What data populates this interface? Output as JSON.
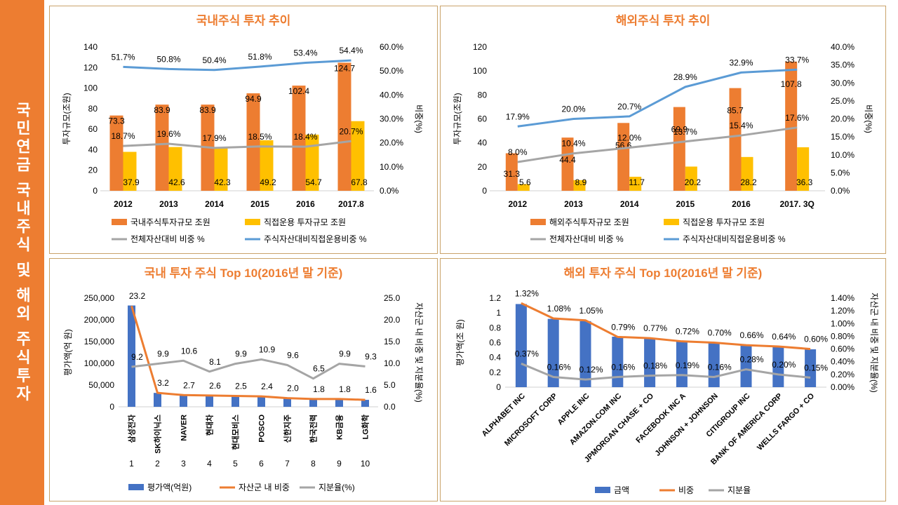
{
  "sidebar": {
    "title": "국민연금 국내주식 및 해외 주식투자"
  },
  "colors": {
    "orange": "#ed7d31",
    "yellow": "#ffc000",
    "gray": "#a5a5a5",
    "blue": "#5b9bd5",
    "dark_blue": "#4472c4",
    "title": "#ed7d31"
  },
  "chart_data": [
    {
      "type": "bar",
      "title": "국내주식 투자 추이",
      "categories": [
        "2012",
        "2013",
        "2014",
        "2015",
        "2016",
        "2017.8"
      ],
      "ylabel": "투자규모(조원)",
      "y2label": "비중(%)",
      "ylim": [
        0,
        140
      ],
      "yticks": [
        "0",
        "20",
        "40",
        "60",
        "80",
        "100",
        "120",
        "140"
      ],
      "y2lim": [
        0,
        60
      ],
      "y2ticks": [
        "0.0%",
        "10.0%",
        "20.0%",
        "30.0%",
        "40.0%",
        "50.0%",
        "60.0%"
      ],
      "series": [
        {
          "name": "국내주식투자규모 조원",
          "kind": "bar",
          "axis": "left",
          "color": "#ed7d31",
          "values": [
            73.3,
            83.9,
            83.9,
            94.9,
            102.4,
            124.7
          ],
          "labels": [
            "73.3",
            "83.9",
            "83.9",
            "94.9",
            "102.4",
            "124.7"
          ]
        },
        {
          "name": "직접운용 투자규모 조원",
          "kind": "bar",
          "axis": "left",
          "color": "#ffc000",
          "values": [
            37.9,
            42.6,
            42.3,
            49.2,
            54.7,
            67.8
          ],
          "labels": [
            "37.9",
            "42.6",
            "42.3",
            "49.2",
            "54.7",
            "67.8"
          ]
        },
        {
          "name": "전체자산대비 비중 %",
          "kind": "line",
          "axis": "right",
          "color": "#a5a5a5",
          "values": [
            18.7,
            19.6,
            17.9,
            18.5,
            18.4,
            20.7
          ],
          "labels": [
            "18.7%",
            "19.6%",
            "17.9%",
            "18.5%",
            "18.4%",
            "20.7%"
          ]
        },
        {
          "name": "주식자산대비직접운용비중 %",
          "kind": "line",
          "axis": "right",
          "color": "#5b9bd5",
          "values": [
            51.7,
            50.8,
            50.4,
            51.8,
            53.4,
            54.4
          ],
          "labels": [
            "51.7%",
            "50.8%",
            "50.4%",
            "51.8%",
            "53.4%",
            "54.4%"
          ]
        }
      ]
    },
    {
      "type": "bar",
      "title": "해외주식 투자 추이",
      "categories": [
        "2012",
        "2013",
        "2014",
        "2015",
        "2016",
        "2017. 3Q"
      ],
      "ylabel": "투자규모(조원)",
      "y2label": "비중(%)",
      "ylim": [
        0,
        120
      ],
      "yticks": [
        "0",
        "20",
        "40",
        "60",
        "80",
        "100",
        "120"
      ],
      "y2lim": [
        0,
        40
      ],
      "y2ticks": [
        "0.0%",
        "5.0%",
        "10.0%",
        "15.0%",
        "20.0%",
        "25.0%",
        "30.0%",
        "35.0%",
        "40.0%"
      ],
      "series": [
        {
          "name": "해외주식투자규모 조원",
          "kind": "bar",
          "axis": "left",
          "color": "#ed7d31",
          "values": [
            31.3,
            44.4,
            56.6,
            69.9,
            85.7,
            107.8
          ],
          "labels": [
            "31.3",
            "44.4",
            "56.6",
            "69.9",
            "85.7",
            "107.8"
          ]
        },
        {
          "name": "직접운용 투자규모 조원",
          "kind": "bar",
          "axis": "left",
          "color": "#ffc000",
          "values": [
            5.6,
            8.9,
            11.7,
            20.2,
            28.2,
            36.3
          ],
          "labels": [
            "5.6",
            "8.9",
            "11.7",
            "20.2",
            "28.2",
            "36.3"
          ]
        },
        {
          "name": "전체자산대비 비중 %",
          "kind": "line",
          "axis": "right",
          "color": "#a5a5a5",
          "values": [
            8.0,
            10.4,
            12.0,
            13.7,
            15.4,
            17.6
          ],
          "labels": [
            "8.0%",
            "10.4%",
            "12.0%",
            "13.7%",
            "15.4%",
            "17.6%"
          ]
        },
        {
          "name": "주식자산대비직접운용비중 %",
          "kind": "line",
          "axis": "right",
          "color": "#5b9bd5",
          "values": [
            17.9,
            20.0,
            20.7,
            28.9,
            32.9,
            33.7
          ],
          "labels": [
            "17.9%",
            "20.0%",
            "20.7%",
            "28.9%",
            "32.9%",
            "33.7%"
          ]
        }
      ]
    },
    {
      "type": "bar",
      "title": "국내 투자 주식 Top 10(2016년 말 기준)",
      "categories": [
        "삼성전자",
        "SK하이닉스",
        "NAVER",
        "현대차",
        "현대모비스",
        "POSCO",
        "신한지주",
        "한국전력",
        "KB금융",
        "LG화학"
      ],
      "ranks": [
        "1",
        "2",
        "3",
        "4",
        "5",
        "6",
        "7",
        "8",
        "9",
        "10"
      ],
      "ylabel": "평가액(억 원)",
      "y2label": "자산군 내 비중 및 지분율(%)",
      "ylim": [
        0,
        250000
      ],
      "yticks": [
        "0",
        "50,000",
        "100,000",
        "150,000",
        "200,000",
        "250,000"
      ],
      "y2lim": [
        0,
        25
      ],
      "y2ticks": [
        "0.0",
        "5.0",
        "10.0",
        "15.0",
        "20.0",
        "25.0"
      ],
      "series": [
        {
          "name": "평가액(억원)",
          "kind": "bar",
          "axis": "left",
          "color": "#4472c4",
          "values": [
            233000,
            32000,
            27000,
            26000,
            25000,
            24000,
            20000,
            18000,
            18000,
            16000
          ]
        },
        {
          "name": "자산군 내 비중",
          "kind": "line",
          "axis": "right",
          "color": "#ed7d31",
          "values": [
            23.2,
            3.2,
            2.7,
            2.6,
            2.5,
            2.4,
            2.0,
            1.8,
            1.8,
            1.6
          ],
          "labels": [
            "23.2",
            "3.2",
            "2.7",
            "2.6",
            "2.5",
            "2.4",
            "2.0",
            "1.8",
            "1.8",
            "1.6"
          ]
        },
        {
          "name": "지분율(%)",
          "kind": "line",
          "axis": "right",
          "color": "#a5a5a5",
          "values": [
            9.2,
            9.9,
            10.6,
            8.1,
            9.9,
            10.9,
            9.6,
            6.5,
            9.9,
            9.3
          ],
          "labels": [
            "9.2",
            "9.9",
            "10.6",
            "8.1",
            "9.9",
            "10.9",
            "9.6",
            "6.5",
            "9.9",
            "9.3"
          ]
        }
      ]
    },
    {
      "type": "bar",
      "title": "해외 투자 주식 Top 10(2016년 말 기준)",
      "categories": [
        "ALPHABET INC",
        "MICROSOFT CORP",
        "APPLE INC",
        "AMAZON.COM INC",
        "JPMORGAN CHASE + CO",
        "FACEBOOK INC A",
        "JOHNSON + JOHNSON",
        "CITIGROUP INC",
        "BANK OF AMERICA CORP",
        "WELLS FARGO + CO"
      ],
      "ylabel": "평가액(조 원)",
      "y2label": "자산군 내 비중 및 지분율(%)",
      "ylim": [
        0,
        1.2
      ],
      "yticks": [
        "0",
        "0.2",
        "0.4",
        "0.6",
        "0.8",
        "1",
        "1.2"
      ],
      "y2lim": [
        0,
        1.4
      ],
      "y2ticks": [
        "0.00%",
        "0.20%",
        "0.40%",
        "0.60%",
        "0.80%",
        "1.00%",
        "1.20%",
        "1.40%"
      ],
      "series": [
        {
          "name": "금액",
          "kind": "bar",
          "axis": "left",
          "color": "#4472c4",
          "values": [
            1.12,
            0.92,
            0.89,
            0.68,
            0.66,
            0.62,
            0.6,
            0.56,
            0.54,
            0.51
          ]
        },
        {
          "name": "비중",
          "kind": "line",
          "axis": "right",
          "color": "#ed7d31",
          "values": [
            1.32,
            1.08,
            1.05,
            0.79,
            0.77,
            0.72,
            0.7,
            0.66,
            0.64,
            0.6
          ],
          "labels": [
            "1.32%",
            "1.08%",
            "1.05%",
            "0.79%",
            "0.77%",
            "0.72%",
            "0.70%",
            "0.66%",
            "0.64%",
            "0.60%"
          ]
        },
        {
          "name": "지분율",
          "kind": "line",
          "axis": "right",
          "color": "#a5a5a5",
          "values": [
            0.37,
            0.16,
            0.12,
            0.16,
            0.18,
            0.19,
            0.16,
            0.28,
            0.2,
            0.15
          ],
          "labels": [
            "0.37%",
            "0.16%",
            "0.12%",
            "0.16%",
            "0.18%",
            "0.19%",
            "0.16%",
            "0.28%",
            "0.20%",
            "0.15%"
          ]
        }
      ]
    }
  ]
}
